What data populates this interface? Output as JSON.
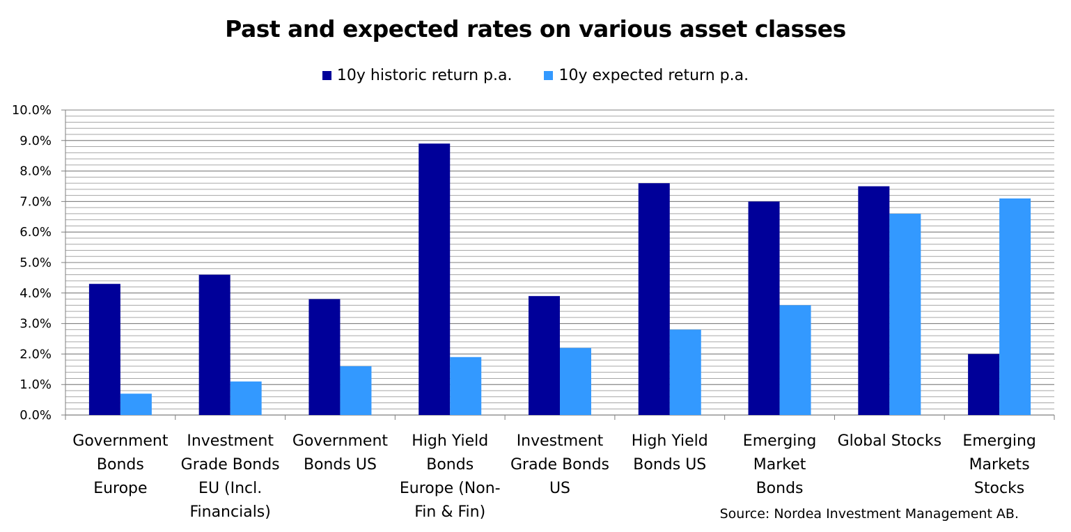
{
  "chart_data": {
    "type": "bar",
    "title": "Past and expected rates on various asset classes",
    "xlabel": "",
    "ylabel": "",
    "ylim": [
      0,
      10
    ],
    "yticks": [
      "0.0%",
      "1.0%",
      "2.0%",
      "3.0%",
      "4.0%",
      "5.0%",
      "6.0%",
      "7.0%",
      "8.0%",
      "9.0%",
      "10.0%"
    ],
    "grid": true,
    "legend_position": "top",
    "categories": [
      [
        "Government",
        "Bonds",
        "Europe"
      ],
      [
        "Investment",
        "Grade Bonds",
        "EU (Incl.",
        "Financials)"
      ],
      [
        "Government",
        "Bonds US"
      ],
      [
        "High Yield",
        "Bonds",
        "Europe (Non-",
        "Fin & Fin)"
      ],
      [
        "Investment",
        "Grade Bonds",
        "US"
      ],
      [
        "High Yield",
        "Bonds US"
      ],
      [
        "Emerging",
        "Market",
        "Bonds"
      ],
      [
        "Global Stocks"
      ],
      [
        "Emerging",
        "Markets",
        "Stocks"
      ]
    ],
    "series": [
      {
        "name": "10y historic return p.a.",
        "color": "#000099",
        "values": [
          4.3,
          4.6,
          3.8,
          8.9,
          3.9,
          7.6,
          7.0,
          7.5,
          2.0
        ]
      },
      {
        "name": "10y expected return p.a.",
        "color": "#3399ff",
        "values": [
          0.7,
          1.1,
          1.6,
          1.9,
          2.2,
          2.8,
          3.6,
          6.6,
          7.1
        ]
      }
    ],
    "source": "Source: Nordea Investment Management AB."
  }
}
